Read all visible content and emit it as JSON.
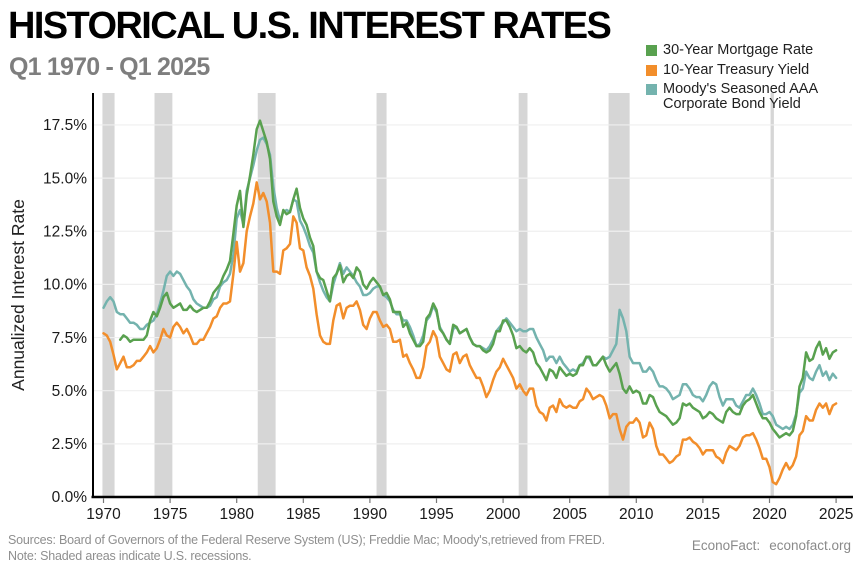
{
  "header": {
    "title": "HISTORICAL U.S. INTEREST RATES",
    "subtitle": "Q1 1970 - Q1 2025"
  },
  "legend": {
    "items": [
      {
        "label": "30-Year Mortgage Rate",
        "color": "#59a14f"
      },
      {
        "label": "10-Year Treasury Yield",
        "color": "#f28e2b"
      },
      {
        "label": "Moody's Seasoned AAA",
        "label2": "Corporate Bond Yield",
        "color": "#74b3ae"
      }
    ]
  },
  "footer": {
    "sources": "Sources: Board of Governors of the Federal Reserve System (US); Freddie Mac; Moody's,retrieved from FRED.",
    "note": "Note: Shaded areas indicate U.S. recessions.",
    "brand": "EconoFact:",
    "brand_url": "econofact.org"
  },
  "chart_data": {
    "type": "line",
    "title": "HISTORICAL U.S. INTEREST RATES",
    "subtitle": "Q1 1970 - Q1 2025",
    "ylabel": "Annualized Interest Rate",
    "xlabel": "",
    "grid": "horizontal",
    "legend_position": "top-right",
    "ylim": [
      0,
      19
    ],
    "xlim": [
      1969.2,
      2025.9
    ],
    "x_axis": {
      "start_year": 1970,
      "quarter_step": 0.25,
      "ticks": [
        1970,
        1975,
        1980,
        1985,
        1990,
        1995,
        2000,
        2005,
        2010,
        2015,
        2020,
        2025
      ]
    },
    "y_axis": {
      "ticks": [
        {
          "value": 0,
          "label": "0.0%"
        },
        {
          "value": 2.5,
          "label": "2.5%"
        },
        {
          "value": 5,
          "label": "5.0%"
        },
        {
          "value": 7.5,
          "label": "7.5%"
        },
        {
          "value": 10,
          "label": "10.0%"
        },
        {
          "value": 12.5,
          "label": "12.5%"
        },
        {
          "value": 15,
          "label": "15.0%"
        },
        {
          "value": 17.5,
          "label": "17.5%"
        }
      ]
    },
    "recessions_note": "shaded bands are U.S. recessions (year ranges)",
    "recessions": [
      [
        1969.92,
        1970.83
      ],
      [
        1973.83,
        1975.17
      ],
      [
        1981.58,
        1982.92
      ],
      [
        1990.5,
        1991.25
      ],
      [
        2001.17,
        2001.83
      ],
      [
        2007.92,
        2009.5
      ],
      [
        2020.08,
        2020.33
      ]
    ],
    "band_color": "#d6d6d6",
    "grid_color": "#efefef",
    "axis_color": "#1a1a1a",
    "series": [
      {
        "name": "30-Year Mortgage Rate",
        "color": "#59a14f",
        "values": [
          null,
          null,
          null,
          null,
          null,
          7.4,
          7.6,
          7.5,
          7.3,
          7.4,
          7.4,
          7.4,
          7.4,
          7.6,
          8.3,
          8.7,
          8.5,
          8.9,
          9.4,
          9.6,
          9.1,
          8.9,
          9.0,
          9.1,
          8.8,
          8.8,
          9.0,
          8.8,
          8.7,
          8.8,
          8.9,
          8.9,
          9.2,
          9.6,
          9.8,
          10.0,
          10.4,
          10.7,
          11.1,
          12.4,
          13.7,
          14.4,
          12.7,
          14.2,
          15.1,
          16.1,
          17.3,
          17.7,
          17.2,
          16.7,
          15.9,
          13.9,
          13.2,
          12.8,
          13.5,
          13.3,
          13.4,
          14.0,
          14.5,
          13.6,
          13.1,
          12.8,
          12.2,
          11.8,
          10.6,
          10.3,
          10.2,
          9.7,
          9.2,
          10.3,
          10.5,
          10.9,
          10.1,
          10.4,
          10.5,
          10.3,
          10.8,
          10.6,
          10.0,
          9.8,
          10.1,
          10.3,
          10.1,
          9.9,
          9.5,
          9.6,
          9.3,
          8.7,
          8.7,
          8.7,
          8.0,
          8.2,
          7.7,
          7.4,
          7.1,
          7.1,
          7.3,
          8.4,
          8.6,
          9.1,
          8.8,
          7.9,
          7.7,
          7.4,
          7.2,
          8.1,
          8.0,
          7.7,
          7.8,
          7.9,
          7.5,
          7.2,
          7.1,
          7.1,
          6.9,
          6.8,
          6.9,
          7.2,
          7.8,
          7.8,
          8.3,
          8.3,
          8.0,
          7.6,
          7.0,
          7.1,
          6.9,
          6.8,
          7.0,
          6.8,
          6.3,
          6.1,
          5.8,
          5.5,
          6.0,
          5.9,
          5.6,
          6.1,
          5.9,
          5.7,
          5.8,
          5.7,
          5.8,
          6.2,
          6.2,
          6.6,
          6.6,
          6.2,
          6.2,
          6.4,
          6.6,
          6.2,
          5.9,
          6.1,
          6.3,
          5.8,
          5.1,
          4.9,
          5.2,
          4.9,
          5.0,
          4.9,
          4.4,
          4.4,
          4.8,
          4.7,
          4.3,
          4.0,
          3.9,
          3.8,
          3.6,
          3.4,
          3.5,
          3.7,
          4.4,
          4.3,
          4.4,
          4.2,
          4.1,
          4.0,
          3.7,
          3.8,
          4.0,
          3.9,
          3.7,
          3.6,
          3.5,
          4.0,
          4.2,
          4.0,
          3.9,
          3.9,
          4.3,
          4.5,
          4.6,
          4.8,
          4.4,
          4.0,
          3.7,
          3.7,
          3.5,
          3.2,
          3.0,
          2.8,
          2.9,
          3.0,
          2.9,
          3.1,
          3.8,
          5.2,
          5.6,
          6.8,
          6.4,
          6.5,
          7.0,
          7.3,
          6.7,
          7.0,
          6.5,
          6.8,
          6.9
        ]
      },
      {
        "name": "10-Year Treasury Yield",
        "color": "#f28e2b",
        "values": [
          7.7,
          7.6,
          7.3,
          6.7,
          6.0,
          6.3,
          6.6,
          6.1,
          6.1,
          6.2,
          6.4,
          6.4,
          6.6,
          6.8,
          7.1,
          6.8,
          7.0,
          7.4,
          7.9,
          7.6,
          7.5,
          8.0,
          8.2,
          8.0,
          7.7,
          7.9,
          7.6,
          7.2,
          7.2,
          7.4,
          7.4,
          7.7,
          8.0,
          8.4,
          8.5,
          8.9,
          9.1,
          9.1,
          9.2,
          10.5,
          12.0,
          10.6,
          11.0,
          12.5,
          13.2,
          13.8,
          14.8,
          14.0,
          14.3,
          13.9,
          12.9,
          10.6,
          10.6,
          10.5,
          11.6,
          11.7,
          11.9,
          13.2,
          12.9,
          11.7,
          11.6,
          10.8,
          10.4,
          9.8,
          8.6,
          7.6,
          7.3,
          7.2,
          7.2,
          8.3,
          9.0,
          9.1,
          8.4,
          8.9,
          9.0,
          9.0,
          9.2,
          8.8,
          8.1,
          7.9,
          8.4,
          8.7,
          8.7,
          8.3,
          8.0,
          8.1,
          7.9,
          7.3,
          7.3,
          7.4,
          6.6,
          6.7,
          6.3,
          6.0,
          5.6,
          5.6,
          6.1,
          7.1,
          7.3,
          7.8,
          7.5,
          6.6,
          6.3,
          6.0,
          5.9,
          6.7,
          6.8,
          6.3,
          6.6,
          6.7,
          6.2,
          5.9,
          5.6,
          5.6,
          5.2,
          4.7,
          5.0,
          5.5,
          5.9,
          6.1,
          6.5,
          6.2,
          5.9,
          5.6,
          5.1,
          5.3,
          5.0,
          4.8,
          5.1,
          5.1,
          4.3,
          4.0,
          3.9,
          3.6,
          4.2,
          4.3,
          4.0,
          4.6,
          4.3,
          4.2,
          4.3,
          4.2,
          4.2,
          4.5,
          4.6,
          5.1,
          4.9,
          4.6,
          4.7,
          4.8,
          4.7,
          4.3,
          3.7,
          3.9,
          3.9,
          3.2,
          2.7,
          3.3,
          3.5,
          3.5,
          3.7,
          3.5,
          2.8,
          2.9,
          3.5,
          3.2,
          2.4,
          2.0,
          2.0,
          1.8,
          1.6,
          1.7,
          1.9,
          2.0,
          2.7,
          2.7,
          2.8,
          2.6,
          2.5,
          2.3,
          2.0,
          2.2,
          2.2,
          2.2,
          1.9,
          1.8,
          1.6,
          2.1,
          2.4,
          2.3,
          2.2,
          2.4,
          2.8,
          2.9,
          2.9,
          3.0,
          2.7,
          2.3,
          1.8,
          1.8,
          1.4,
          0.7,
          0.6,
          0.9,
          1.3,
          1.6,
          1.3,
          1.5,
          1.9,
          2.9,
          3.1,
          3.8,
          3.6,
          3.6,
          4.1,
          4.4,
          4.2,
          4.4,
          3.9,
          4.3,
          4.4
        ]
      },
      {
        "name": "Moody's Seasoned AAA Corporate Bond Yield",
        "color": "#74b3ae",
        "values": [
          8.9,
          9.2,
          9.4,
          9.2,
          8.7,
          8.6,
          8.6,
          8.4,
          8.2,
          8.2,
          8.1,
          7.9,
          7.9,
          8.1,
          8.2,
          8.3,
          8.6,
          9.1,
          9.7,
          10.4,
          10.6,
          10.4,
          10.6,
          10.5,
          10.2,
          9.9,
          9.7,
          9.3,
          9.1,
          9.0,
          8.9,
          8.9,
          9.0,
          9.3,
          9.4,
          9.9,
          10.1,
          10.2,
          10.5,
          11.4,
          13.1,
          13.5,
          12.8,
          14.4,
          15.0,
          15.6,
          16.3,
          16.8,
          16.9,
          16.6,
          16.1,
          14.6,
          13.6,
          13.0,
          13.4,
          13.5,
          13.4,
          14.0,
          13.9,
          13.0,
          12.7,
          12.3,
          11.8,
          11.5,
          10.6,
          10.1,
          9.7,
          9.4,
          9.2,
          10.0,
          10.5,
          11.0,
          10.5,
          10.8,
          10.6,
          10.4,
          10.1,
          9.9,
          9.5,
          9.5,
          9.6,
          9.8,
          9.9,
          9.9,
          9.5,
          9.4,
          9.2,
          8.8,
          8.6,
          8.6,
          8.3,
          8.3,
          8.0,
          7.6,
          7.1,
          7.2,
          7.6,
          8.3,
          8.5,
          9.0,
          8.7,
          8.0,
          7.7,
          7.4,
          7.2,
          7.9,
          8.0,
          7.7,
          7.8,
          7.9,
          7.5,
          7.2,
          7.1,
          7.1,
          7.0,
          6.9,
          7.1,
          7.4,
          7.8,
          8.0,
          8.2,
          8.4,
          8.2,
          8.0,
          7.8,
          7.9,
          7.8,
          7.8,
          7.9,
          7.9,
          7.5,
          7.2,
          6.9,
          6.4,
          6.6,
          6.6,
          6.3,
          6.6,
          6.3,
          6.1,
          5.9,
          6.0,
          5.9,
          6.2,
          6.3,
          6.6,
          6.5,
          6.2,
          6.2,
          6.4,
          6.6,
          6.5,
          6.6,
          6.9,
          7.2,
          8.8,
          8.4,
          7.8,
          6.6,
          6.3,
          6.3,
          6.3,
          5.9,
          5.9,
          6.1,
          5.9,
          5.5,
          5.2,
          5.2,
          5.1,
          4.9,
          4.6,
          4.7,
          4.8,
          5.3,
          5.3,
          5.1,
          4.8,
          4.7,
          4.7,
          4.5,
          4.8,
          5.2,
          5.4,
          5.3,
          4.7,
          4.3,
          4.6,
          4.6,
          4.6,
          4.3,
          4.2,
          4.5,
          4.8,
          4.8,
          5.1,
          4.8,
          4.4,
          3.9,
          3.9,
          4.0,
          3.8,
          3.4,
          3.3,
          3.2,
          3.3,
          3.2,
          3.4,
          3.9,
          4.9,
          5.1,
          5.9,
          5.6,
          5.5,
          5.9,
          6.2,
          5.7,
          5.9,
          5.5,
          5.8,
          5.6
        ]
      }
    ]
  }
}
